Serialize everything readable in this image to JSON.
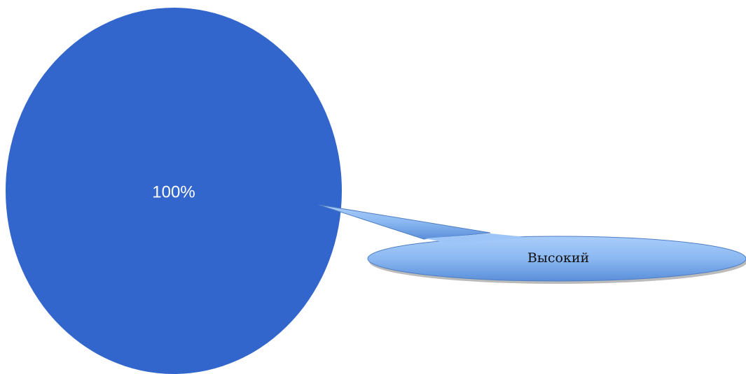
{
  "chart_data": {
    "type": "pie",
    "categories": [
      "Высокий"
    ],
    "values": [
      100
    ],
    "value_labels": [
      "100%"
    ],
    "colors": [
      "#3366cc"
    ]
  }
}
